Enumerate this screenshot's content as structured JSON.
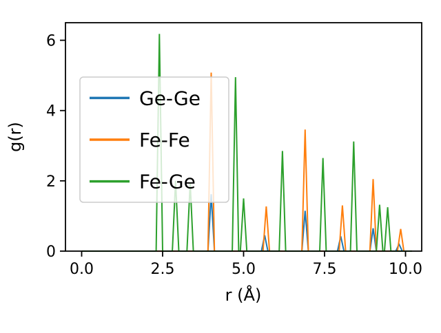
{
  "figure": {
    "background": "#ffffff",
    "spine_color": "#000000"
  },
  "chart_data": {
    "type": "line",
    "title": "",
    "xlabel": "r (Å)",
    "ylabel": "g(r)",
    "xlim": [
      -0.5,
      10.5
    ],
    "ylim": [
      0,
      6.5
    ],
    "x_tick_values": [
      0,
      2.5,
      5,
      7.5,
      10
    ],
    "x_tick_labels": [
      "0.0",
      "2.5",
      "5.0",
      "7.5",
      "10.0"
    ],
    "y_tick_values": [
      0,
      2,
      4,
      6
    ],
    "y_tick_labels": [
      "0",
      "2",
      "4",
      "6"
    ],
    "grid": false,
    "legend_position": "upper left",
    "baseline_range": [
      0,
      10.2
    ],
    "peak_halfwidth": 0.1,
    "series": [
      {
        "name": "Ge-Ge",
        "color": "#1f77b4",
        "peaks": [
          [
            4.0,
            1.62
          ],
          [
            5.65,
            0.45
          ],
          [
            6.9,
            1.15
          ],
          [
            8.0,
            0.42
          ],
          [
            9.0,
            0.65
          ],
          [
            9.8,
            0.2
          ]
        ]
      },
      {
        "name": "Fe-Fe",
        "color": "#ff7f0e",
        "peaks": [
          [
            4.0,
            5.08
          ],
          [
            5.7,
            1.27
          ],
          [
            6.9,
            3.46
          ],
          [
            8.05,
            1.3
          ],
          [
            9.0,
            2.05
          ],
          [
            9.85,
            0.63
          ]
        ]
      },
      {
        "name": "Fe-Ge",
        "color": "#2ca02c",
        "peaks": [
          [
            2.4,
            6.18
          ],
          [
            2.9,
            2.0
          ],
          [
            3.35,
            1.95
          ],
          [
            4.75,
            4.95
          ],
          [
            5.0,
            1.5
          ],
          [
            6.2,
            2.85
          ],
          [
            7.45,
            2.65
          ],
          [
            8.4,
            3.12
          ],
          [
            9.2,
            1.32
          ],
          [
            9.45,
            1.25
          ]
        ]
      }
    ]
  }
}
